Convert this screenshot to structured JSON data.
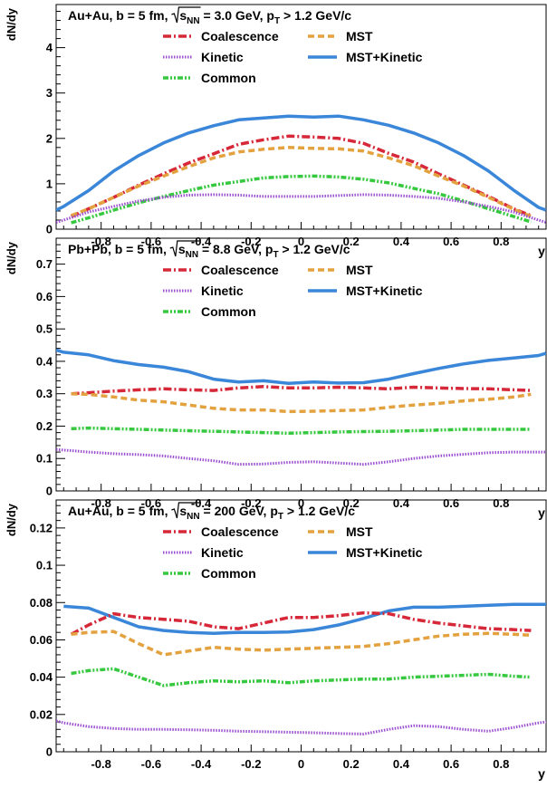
{
  "colors": {
    "coalescence": "#d62839",
    "mst": "#e3a23f",
    "kinetic": "#9b4fd0",
    "mst_kinetic": "#3a86d8",
    "common": "#36c83e"
  },
  "chart_data": [
    {
      "type": "line",
      "title_parts": {
        "sys": "Au+Au, b = 5 fm, ",
        "root": "s",
        "sub": "NN",
        "rest": " = 3.0 GeV, p",
        "pt_sub": "T",
        "cut": " > 1.2 GeV/c"
      },
      "xlabel": "y",
      "ylabel": "dN/dy",
      "xlim": [
        -0.98,
        0.98
      ],
      "ylim": [
        0,
        4.95
      ],
      "xticks": [
        "-0.8",
        "-0.6",
        "-0.4",
        "-0.2",
        "0",
        "0.2",
        "0.4",
        "0.6",
        "0.8"
      ],
      "yticks": [
        0,
        1,
        2,
        3,
        4
      ],
      "ytick_labels": [
        "0",
        "1",
        "2",
        "3",
        "4"
      ],
      "legend": {
        "coalescence": "Coalescence",
        "mst": "MST",
        "kinetic": "Kinetic",
        "mst_kinetic": "MST+Kinetic",
        "common": "Common"
      },
      "series": [
        {
          "key": "mst_kinetic",
          "x": [
            -0.98,
            -0.95,
            -0.85,
            -0.75,
            -0.65,
            -0.55,
            -0.45,
            -0.35,
            -0.25,
            -0.15,
            -0.05,
            0.05,
            0.15,
            0.25,
            0.35,
            0.45,
            0.55,
            0.65,
            0.75,
            0.85,
            0.95,
            0.98
          ],
          "y": [
            0.42,
            0.5,
            0.85,
            1.28,
            1.62,
            1.9,
            2.12,
            2.28,
            2.41,
            2.45,
            2.49,
            2.47,
            2.49,
            2.41,
            2.29,
            2.12,
            1.9,
            1.62,
            1.28,
            0.86,
            0.48,
            0.42
          ]
        },
        {
          "key": "coalescence",
          "x": [
            -0.92,
            -0.85,
            -0.75,
            -0.65,
            -0.55,
            -0.45,
            -0.35,
            -0.25,
            -0.15,
            -0.05,
            0.05,
            0.15,
            0.25,
            0.35,
            0.45,
            0.55,
            0.65,
            0.75,
            0.85,
            0.92
          ],
          "y": [
            0.28,
            0.45,
            0.7,
            0.97,
            1.22,
            1.46,
            1.66,
            1.87,
            1.97,
            2.05,
            2.03,
            2.0,
            1.89,
            1.67,
            1.48,
            1.22,
            0.97,
            0.72,
            0.45,
            0.3
          ]
        },
        {
          "key": "mst",
          "x": [
            -0.92,
            -0.85,
            -0.75,
            -0.65,
            -0.55,
            -0.45,
            -0.35,
            -0.25,
            -0.15,
            -0.05,
            0.05,
            0.15,
            0.25,
            0.35,
            0.45,
            0.55,
            0.65,
            0.75,
            0.85,
            0.92
          ],
          "y": [
            0.3,
            0.45,
            0.7,
            0.95,
            1.17,
            1.38,
            1.57,
            1.7,
            1.76,
            1.8,
            1.78,
            1.77,
            1.72,
            1.57,
            1.4,
            1.17,
            0.95,
            0.7,
            0.44,
            0.28
          ]
        },
        {
          "key": "common",
          "x": [
            -0.92,
            -0.85,
            -0.75,
            -0.65,
            -0.55,
            -0.45,
            -0.35,
            -0.25,
            -0.15,
            -0.05,
            0.05,
            0.15,
            0.25,
            0.35,
            0.45,
            0.55,
            0.65,
            0.75,
            0.85,
            0.92
          ],
          "y": [
            0.14,
            0.25,
            0.42,
            0.58,
            0.72,
            0.85,
            0.97,
            1.05,
            1.13,
            1.16,
            1.17,
            1.15,
            1.1,
            1.02,
            0.9,
            0.78,
            0.62,
            0.45,
            0.28,
            0.16
          ]
        },
        {
          "key": "kinetic",
          "x": [
            -0.98,
            -0.95,
            -0.85,
            -0.75,
            -0.65,
            -0.55,
            -0.45,
            -0.35,
            -0.25,
            -0.15,
            -0.05,
            0.05,
            0.15,
            0.25,
            0.35,
            0.45,
            0.55,
            0.65,
            0.75,
            0.85,
            0.95,
            0.98
          ],
          "y": [
            0.15,
            0.2,
            0.38,
            0.5,
            0.62,
            0.7,
            0.75,
            0.76,
            0.75,
            0.72,
            0.72,
            0.72,
            0.74,
            0.76,
            0.75,
            0.72,
            0.68,
            0.6,
            0.5,
            0.38,
            0.2,
            0.15
          ]
        }
      ]
    },
    {
      "type": "line",
      "title_parts": {
        "sys": "Pb+Pb, b = 5 fm, ",
        "root": "s",
        "sub": "NN",
        "rest": " = 8.8 GeV, p",
        "pt_sub": "T",
        "cut": " > 1.2 GeV/c"
      },
      "xlabel": "y",
      "ylabel": "dN/dy",
      "xlim": [
        -0.98,
        0.98
      ],
      "ylim": [
        0,
        0.78
      ],
      "xticks": [
        "-0.8",
        "-0.6",
        "-0.4",
        "-0.2",
        "0",
        "0.2",
        "0.4",
        "0.6",
        "0.8"
      ],
      "yticks": [
        0,
        0.1,
        0.2,
        0.3,
        0.4,
        0.5,
        0.6,
        0.7
      ],
      "ytick_labels": [
        "0",
        "0.1",
        "0.2",
        "0.3",
        "0.4",
        "0.5",
        "0.6",
        "0.7"
      ],
      "legend": {
        "coalescence": "Coalescence",
        "mst": "MST",
        "kinetic": "Kinetic",
        "mst_kinetic": "MST+Kinetic",
        "common": "Common"
      },
      "series": [
        {
          "key": "mst_kinetic",
          "x": [
            -0.98,
            -0.95,
            -0.85,
            -0.75,
            -0.65,
            -0.55,
            -0.45,
            -0.35,
            -0.25,
            -0.15,
            -0.05,
            0.05,
            0.15,
            0.25,
            0.35,
            0.45,
            0.55,
            0.65,
            0.75,
            0.85,
            0.95,
            0.98
          ],
          "y": [
            0.435,
            0.428,
            0.42,
            0.402,
            0.39,
            0.382,
            0.368,
            0.345,
            0.336,
            0.34,
            0.332,
            0.336,
            0.333,
            0.334,
            0.345,
            0.362,
            0.378,
            0.392,
            0.403,
            0.41,
            0.418,
            0.425
          ]
        },
        {
          "key": "coalescence",
          "x": [
            -0.92,
            -0.85,
            -0.75,
            -0.65,
            -0.55,
            -0.45,
            -0.35,
            -0.25,
            -0.15,
            -0.05,
            0.05,
            0.15,
            0.25,
            0.35,
            0.45,
            0.55,
            0.65,
            0.75,
            0.85,
            0.92
          ],
          "y": [
            0.3,
            0.303,
            0.308,
            0.312,
            0.315,
            0.312,
            0.31,
            0.318,
            0.322,
            0.318,
            0.318,
            0.32,
            0.318,
            0.315,
            0.32,
            0.318,
            0.316,
            0.315,
            0.312,
            0.31
          ]
        },
        {
          "key": "mst",
          "x": [
            -0.92,
            -0.85,
            -0.75,
            -0.65,
            -0.55,
            -0.45,
            -0.35,
            -0.25,
            -0.15,
            -0.05,
            0.05,
            0.15,
            0.25,
            0.35,
            0.45,
            0.55,
            0.65,
            0.75,
            0.85,
            0.92
          ],
          "y": [
            0.3,
            0.298,
            0.29,
            0.28,
            0.275,
            0.265,
            0.255,
            0.25,
            0.25,
            0.245,
            0.246,
            0.248,
            0.25,
            0.258,
            0.265,
            0.27,
            0.278,
            0.283,
            0.29,
            0.298
          ]
        },
        {
          "key": "common",
          "x": [
            -0.92,
            -0.85,
            -0.75,
            -0.65,
            -0.55,
            -0.45,
            -0.35,
            -0.25,
            -0.15,
            -0.05,
            0.05,
            0.15,
            0.25,
            0.35,
            0.45,
            0.55,
            0.65,
            0.75,
            0.85,
            0.92
          ],
          "y": [
            0.192,
            0.194,
            0.192,
            0.19,
            0.188,
            0.186,
            0.184,
            0.182,
            0.18,
            0.178,
            0.18,
            0.182,
            0.183,
            0.184,
            0.186,
            0.188,
            0.19,
            0.19,
            0.19,
            0.19
          ]
        },
        {
          "key": "kinetic",
          "x": [
            -0.98,
            -0.95,
            -0.85,
            -0.75,
            -0.65,
            -0.55,
            -0.45,
            -0.35,
            -0.25,
            -0.15,
            -0.05,
            0.05,
            0.15,
            0.25,
            0.35,
            0.45,
            0.55,
            0.65,
            0.75,
            0.85,
            0.95,
            0.98
          ],
          "y": [
            0.128,
            0.126,
            0.12,
            0.115,
            0.112,
            0.108,
            0.1,
            0.093,
            0.082,
            0.083,
            0.088,
            0.09,
            0.086,
            0.082,
            0.09,
            0.1,
            0.108,
            0.113,
            0.118,
            0.12,
            0.12,
            0.12
          ]
        }
      ]
    },
    {
      "type": "line",
      "title_parts": {
        "sys": "Au+Au, b = 5 fm, ",
        "root": "s",
        "sub": "NN",
        "rest": " = 200 GeV, p",
        "pt_sub": "T",
        "cut": " > 1.2 GeV/c"
      },
      "xlabel": "y",
      "ylabel": "dN/dy",
      "xlim": [
        -0.98,
        0.98
      ],
      "ylim": [
        0,
        0.135
      ],
      "xticks": [
        "-0.8",
        "-0.6",
        "-0.4",
        "-0.2",
        "0",
        "0.2",
        "0.4",
        "0.6",
        "0.8"
      ],
      "yticks": [
        0,
        0.02,
        0.04,
        0.06,
        0.08,
        0.1,
        0.12
      ],
      "ytick_labels": [
        "0",
        "0.02",
        "0.04",
        "0.06",
        "0.08",
        "0.1",
        "0.12"
      ],
      "legend": {
        "coalescence": "Coalescence",
        "mst": "MST",
        "kinetic": "Kinetic",
        "mst_kinetic": "MST+Kinetic",
        "common": "Common"
      },
      "series": [
        {
          "key": "mst_kinetic",
          "x": [
            -0.95,
            -0.85,
            -0.75,
            -0.65,
            -0.55,
            -0.45,
            -0.35,
            -0.25,
            -0.15,
            -0.05,
            0.05,
            0.15,
            0.25,
            0.35,
            0.45,
            0.55,
            0.65,
            0.75,
            0.85,
            0.95,
            0.98
          ],
          "y": [
            0.078,
            0.077,
            0.072,
            0.067,
            0.065,
            0.064,
            0.0635,
            0.064,
            0.064,
            0.0642,
            0.0655,
            0.068,
            0.0715,
            0.0755,
            0.0775,
            0.0775,
            0.078,
            0.0785,
            0.079,
            0.079,
            0.079
          ]
        },
        {
          "key": "coalescence",
          "x": [
            -0.92,
            -0.85,
            -0.75,
            -0.65,
            -0.55,
            -0.45,
            -0.35,
            -0.25,
            -0.15,
            -0.05,
            0.05,
            0.15,
            0.25,
            0.35,
            0.45,
            0.55,
            0.65,
            0.75,
            0.85,
            0.92
          ],
          "y": [
            0.063,
            0.068,
            0.074,
            0.072,
            0.071,
            0.07,
            0.067,
            0.066,
            0.069,
            0.072,
            0.072,
            0.073,
            0.0745,
            0.074,
            0.071,
            0.069,
            0.0675,
            0.066,
            0.0655,
            0.065
          ]
        },
        {
          "key": "mst",
          "x": [
            -0.92,
            -0.85,
            -0.75,
            -0.65,
            -0.55,
            -0.45,
            -0.35,
            -0.25,
            -0.15,
            -0.05,
            0.05,
            0.15,
            0.25,
            0.35,
            0.45,
            0.55,
            0.65,
            0.75,
            0.85,
            0.92
          ],
          "y": [
            0.063,
            0.064,
            0.0645,
            0.058,
            0.052,
            0.054,
            0.056,
            0.055,
            0.0545,
            0.055,
            0.0555,
            0.056,
            0.0565,
            0.058,
            0.06,
            0.062,
            0.063,
            0.0635,
            0.063,
            0.0625
          ]
        },
        {
          "key": "common",
          "x": [
            -0.92,
            -0.85,
            -0.75,
            -0.65,
            -0.55,
            -0.45,
            -0.35,
            -0.25,
            -0.15,
            -0.05,
            0.05,
            0.15,
            0.25,
            0.35,
            0.45,
            0.55,
            0.65,
            0.75,
            0.85,
            0.92
          ],
          "y": [
            0.042,
            0.0435,
            0.0445,
            0.04,
            0.0355,
            0.037,
            0.038,
            0.0375,
            0.038,
            0.037,
            0.038,
            0.0385,
            0.039,
            0.039,
            0.04,
            0.0405,
            0.041,
            0.0415,
            0.0405,
            0.04
          ]
        },
        {
          "key": "kinetic",
          "x": [
            -0.98,
            -0.95,
            -0.85,
            -0.75,
            -0.65,
            -0.55,
            -0.45,
            -0.35,
            -0.25,
            -0.15,
            -0.05,
            0.05,
            0.15,
            0.25,
            0.35,
            0.45,
            0.55,
            0.65,
            0.75,
            0.85,
            0.95,
            0.98
          ],
          "y": [
            0.0165,
            0.0155,
            0.0135,
            0.0125,
            0.012,
            0.012,
            0.0118,
            0.0115,
            0.011,
            0.0108,
            0.0105,
            0.0102,
            0.0098,
            0.0095,
            0.012,
            0.014,
            0.0135,
            0.012,
            0.011,
            0.013,
            0.0155,
            0.016
          ]
        }
      ]
    }
  ]
}
